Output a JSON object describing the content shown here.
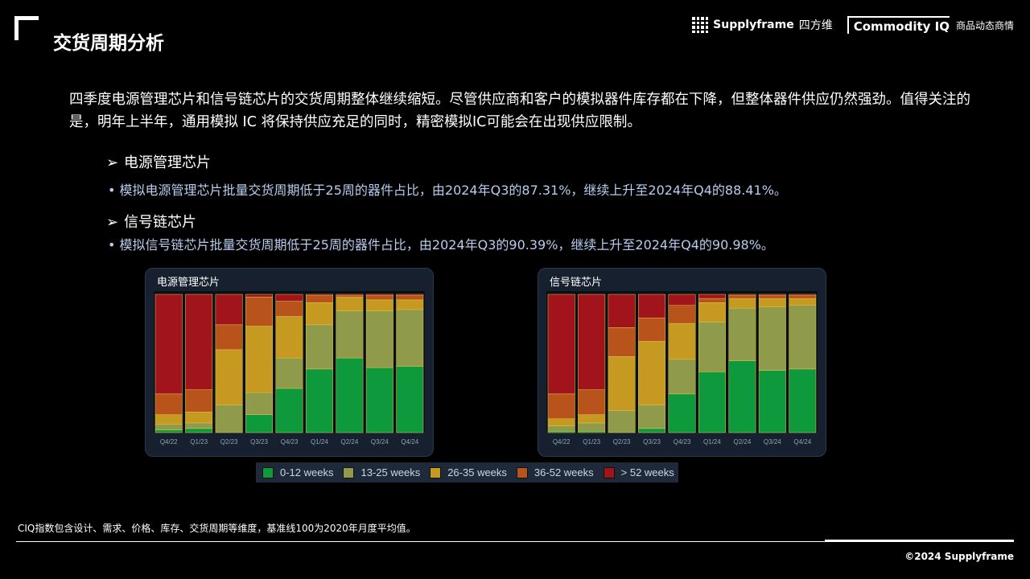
{
  "header": {
    "title": "交货周期分析",
    "brand": "Supplyframe",
    "brand_cn": "四方维",
    "product": "Commodity IQ",
    "product_cn": "商品动态商情"
  },
  "intro": "四季度电源管理芯片和信号链芯片的交货周期整体继续缩短。尽管供应商和客户的模拟器件库存都在下降，但整体器件供应仍然强劲。值得关注的是，明年上半年，通用模拟 IC 将保持供应充足的同时，精密模拟IC可能会在出现供应限制。",
  "sections": [
    {
      "heading": "电源管理芯片",
      "bullet": "模拟电源管理芯片批量交货周期低于25周的器件占比，由2024年Q3的87.31%，继续上升至2024年Q4的88.41%。"
    },
    {
      "heading": "信号链芯片",
      "bullet": "模拟信号链芯片批量交货周期低于25周的器件占比，由2024年Q3的90.39%，继续上升至2024年Q4的90.98%。"
    }
  ],
  "legend": [
    "0-12 weeks",
    "13-25 weeks",
    "26-35 weeks",
    "36-52 weeks",
    "> 52 weeks"
  ],
  "colors": [
    "#0e9a3c",
    "#8f9a4a",
    "#c69a20",
    "#b8531c",
    "#a1141c"
  ],
  "chart_data": [
    {
      "type": "bar",
      "stacked": true,
      "title": "电源管理芯片",
      "categories": [
        "Q4/22",
        "Q1/23",
        "Q2/23",
        "Q3/23",
        "Q4/23",
        "Q1/24",
        "Q2/24",
        "Q3/24",
        "Q4/24"
      ],
      "ylim": [
        0,
        100
      ],
      "series": [
        {
          "name": "0-12 weeks",
          "values": [
            2,
            3,
            0,
            13,
            32,
            46,
            54,
            47,
            48
          ]
        },
        {
          "name": "13-25 weeks",
          "values": [
            4,
            4,
            20,
            16,
            22,
            32,
            34,
            41,
            41
          ]
        },
        {
          "name": "26-35 weeks",
          "values": [
            7,
            8,
            40,
            48,
            30,
            16,
            10,
            8,
            7
          ]
        },
        {
          "name": "36-52 weeks",
          "values": [
            15,
            16,
            18,
            21,
            11,
            5,
            1,
            3,
            3
          ]
        },
        {
          "name": "> 52 weeks",
          "values": [
            72,
            69,
            22,
            2,
            5,
            1,
            1,
            1,
            1
          ]
        }
      ]
    },
    {
      "type": "bar",
      "stacked": true,
      "title": "信号链芯片",
      "categories": [
        "Q4/22",
        "Q1/23",
        "Q2/23",
        "Q3/23",
        "Q4/23",
        "Q1/24",
        "Q2/24",
        "Q3/24",
        "Q4/24"
      ],
      "ylim": [
        0,
        100
      ],
      "series": [
        {
          "name": "0-12 weeks",
          "values": [
            1,
            1,
            0,
            3,
            28,
            44,
            52,
            45,
            46
          ]
        },
        {
          "name": "13-25 weeks",
          "values": [
            4,
            6,
            16,
            17,
            25,
            36,
            38,
            46,
            46
          ]
        },
        {
          "name": "26-35 weeks",
          "values": [
            5,
            6,
            39,
            46,
            26,
            14,
            7,
            6,
            5
          ]
        },
        {
          "name": "36-52 weeks",
          "values": [
            18,
            18,
            21,
            17,
            13,
            3,
            2,
            2,
            2
          ]
        },
        {
          "name": "> 52 weeks",
          "values": [
            72,
            69,
            24,
            17,
            8,
            3,
            1,
            1,
            1
          ]
        }
      ]
    }
  ],
  "footer": {
    "note": "CIQ指数包含设计、需求、价格、库存、交货周期等维度，基准线100为2020年月度平均值。",
    "copyright": "©2024 Supplyframe"
  }
}
